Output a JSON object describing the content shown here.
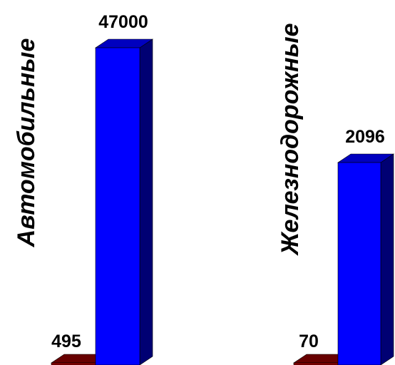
{
  "chart_data": [
    {
      "type": "bar",
      "category_label": "Автомобильные",
      "values": [
        495,
        47000
      ],
      "labels": [
        "495",
        "47000"
      ],
      "colors": [
        "#8b0000",
        "#0000ff"
      ]
    },
    {
      "type": "bar",
      "category_label": "Железнодорожные",
      "values": [
        70,
        2096
      ],
      "labels": [
        "70",
        "2096"
      ],
      "colors": [
        "#8b0000",
        "#0000ff"
      ]
    }
  ]
}
